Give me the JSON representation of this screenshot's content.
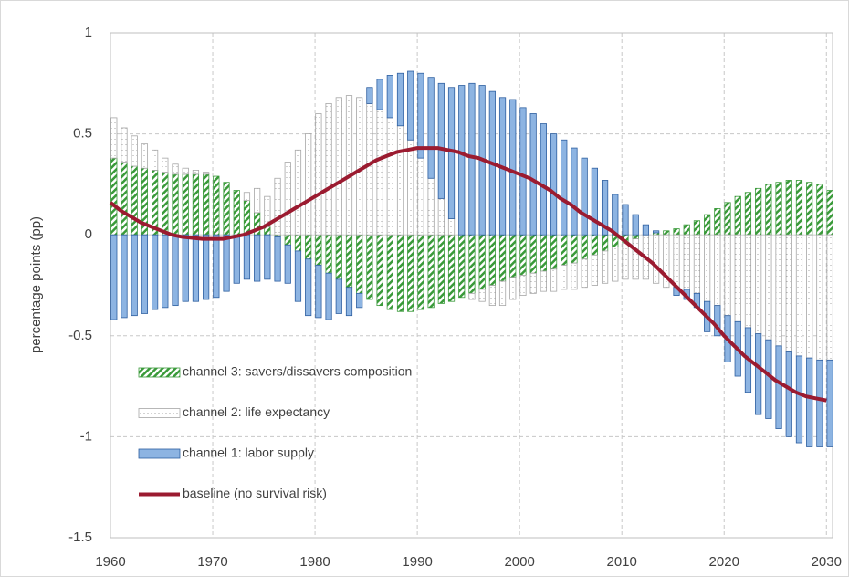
{
  "chart_data": {
    "type": "stacked-bar-line",
    "y_label": "percentage points (pp)",
    "x": [
      1960,
      1961,
      1962,
      1963,
      1964,
      1965,
      1966,
      1967,
      1968,
      1969,
      1970,
      1971,
      1972,
      1973,
      1974,
      1975,
      1976,
      1977,
      1978,
      1979,
      1980,
      1981,
      1982,
      1983,
      1984,
      1985,
      1986,
      1987,
      1988,
      1989,
      1990,
      1991,
      1992,
      1993,
      1994,
      1995,
      1996,
      1997,
      1998,
      1999,
      2000,
      2001,
      2002,
      2003,
      2004,
      2005,
      2006,
      2007,
      2008,
      2009,
      2010,
      2011,
      2012,
      2013,
      2014,
      2015,
      2016,
      2017,
      2018,
      2019,
      2020,
      2021,
      2022,
      2023,
      2024,
      2025,
      2026,
      2027,
      2028,
      2029,
      2030
    ],
    "series": [
      {
        "name": "channel 3: savers/dissavers composition",
        "type": "bar",
        "pattern": "hatch",
        "color": "#3a9a3a",
        "edgecolor": "#3a9a3a",
        "values": [
          0.38,
          0.36,
          0.34,
          0.33,
          0.32,
          0.31,
          0.3,
          0.3,
          0.3,
          0.3,
          0.29,
          0.26,
          0.22,
          0.17,
          0.11,
          0.04,
          -0.01,
          -0.05,
          -0.08,
          -0.12,
          -0.15,
          -0.19,
          -0.22,
          -0.26,
          -0.29,
          -0.32,
          -0.35,
          -0.37,
          -0.38,
          -0.38,
          -0.37,
          -0.36,
          -0.34,
          -0.33,
          -0.31,
          -0.29,
          -0.27,
          -0.25,
          -0.23,
          -0.21,
          -0.2,
          -0.19,
          -0.18,
          -0.17,
          -0.15,
          -0.14,
          -0.12,
          -0.1,
          -0.08,
          -0.06,
          -0.04,
          -0.02,
          0,
          0.01,
          0.02,
          0.03,
          0.05,
          0.07,
          0.1,
          0.13,
          0.16,
          0.19,
          0.21,
          0.23,
          0.25,
          0.26,
          0.27,
          0.27,
          0.26,
          0.25,
          0.22
        ]
      },
      {
        "name": "channel 2: life expectancy",
        "type": "bar",
        "pattern": "dots",
        "color": "#ffffff",
        "edgecolor": "#a6a6a6",
        "values": [
          0.2,
          0.17,
          0.15,
          0.12,
          0.1,
          0.07,
          0.05,
          0.03,
          0.02,
          0.01,
          0,
          0,
          0,
          0.04,
          0.12,
          0.15,
          0.28,
          0.36,
          0.42,
          0.5,
          0.6,
          0.65,
          0.68,
          0.69,
          0.68,
          0.65,
          0.62,
          0.58,
          0.54,
          0.47,
          0.38,
          0.28,
          0.18,
          0.08,
          0,
          -0.03,
          -0.06,
          -0.1,
          -0.12,
          -0.11,
          -0.1,
          -0.1,
          -0.1,
          -0.11,
          -0.12,
          -0.13,
          -0.14,
          -0.15,
          -0.16,
          -0.17,
          -0.18,
          -0.2,
          -0.22,
          -0.24,
          -0.26,
          -0.26,
          -0.27,
          -0.29,
          -0.33,
          -0.35,
          -0.4,
          -0.43,
          -0.46,
          -0.49,
          -0.52,
          -0.55,
          -0.58,
          -0.6,
          -0.61,
          -0.62,
          -0.62
        ]
      },
      {
        "name": "channel 1: labor supply",
        "type": "bar",
        "pattern": "solid",
        "color": "#8db4e2",
        "edgecolor": "#2e5fa0",
        "values": [
          -0.42,
          -0.41,
          -0.4,
          -0.39,
          -0.37,
          -0.36,
          -0.35,
          -0.33,
          -0.33,
          -0.32,
          -0.31,
          -0.28,
          -0.24,
          -0.22,
          -0.23,
          -0.22,
          -0.22,
          -0.19,
          -0.25,
          -0.28,
          -0.26,
          -0.23,
          -0.17,
          -0.14,
          -0.07,
          0.08,
          0.15,
          0.21,
          0.26,
          0.34,
          0.42,
          0.5,
          0.57,
          0.65,
          0.74,
          0.75,
          0.74,
          0.71,
          0.68,
          0.67,
          0.63,
          0.6,
          0.55,
          0.5,
          0.47,
          0.43,
          0.38,
          0.33,
          0.27,
          0.2,
          0.15,
          0.1,
          0.05,
          0.01,
          0,
          -0.04,
          -0.05,
          -0.07,
          -0.15,
          -0.15,
          -0.23,
          -0.27,
          -0.32,
          -0.4,
          -0.39,
          -0.41,
          -0.42,
          -0.43,
          -0.44,
          -0.43,
          -0.43
        ]
      },
      {
        "name": "baseline (no survival risk)",
        "type": "line",
        "color": "#9b1b30",
        "values": [
          0.16,
          0.12,
          0.09,
          0.06,
          0.04,
          0.02,
          0,
          -0.01,
          -0.015,
          -0.02,
          -0.02,
          -0.02,
          -0.01,
          0,
          0.02,
          0.04,
          0.07,
          0.1,
          0.13,
          0.16,
          0.19,
          0.22,
          0.25,
          0.28,
          0.31,
          0.34,
          0.37,
          0.39,
          0.41,
          0.42,
          0.43,
          0.43,
          0.43,
          0.42,
          0.41,
          0.39,
          0.38,
          0.36,
          0.34,
          0.32,
          0.3,
          0.28,
          0.25,
          0.22,
          0.18,
          0.15,
          0.11,
          0.08,
          0.05,
          0.02,
          -0.02,
          -0.06,
          -0.1,
          -0.14,
          -0.19,
          -0.24,
          -0.29,
          -0.34,
          -0.39,
          -0.44,
          -0.5,
          -0.55,
          -0.6,
          -0.64,
          -0.68,
          -0.72,
          -0.75,
          -0.78,
          -0.8,
          -0.81,
          -0.82
        ]
      }
    ],
    "xlim": [
      1960,
      2030.6
    ],
    "xticks": [
      1960,
      1970,
      1980,
      1990,
      2000,
      2010,
      2020,
      2030
    ],
    "ylim": [
      -1.5,
      1
    ],
    "yticks": [
      -1.5,
      -1,
      -0.5,
      0,
      0.5,
      1
    ],
    "grid": true,
    "legend": "left"
  }
}
